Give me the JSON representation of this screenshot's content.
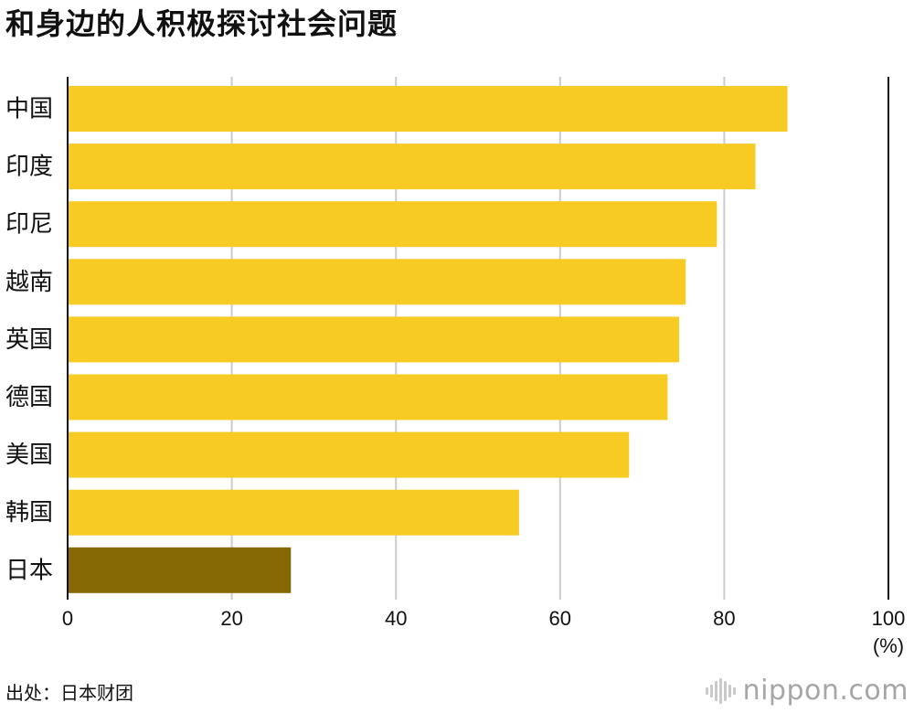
{
  "title": "和身边的人积极探讨社会问题",
  "source": "出处：日本财团",
  "logo": {
    "name": "nippon",
    "dot": ".",
    "suffix": "com"
  },
  "colors": {
    "bar": "#f7ca24",
    "highlight": "#866905",
    "grid": "#cccccc",
    "axis": "#111111",
    "text": "#111111"
  },
  "chart_data": {
    "type": "bar",
    "orientation": "horizontal",
    "title": "和身边的人积极探讨社会问题",
    "categories": [
      "中国",
      "印度",
      "印尼",
      "越南",
      "英国",
      "德国",
      "美国",
      "韩国",
      "日本"
    ],
    "values": [
      87.7,
      83.8,
      79.1,
      75.3,
      74.5,
      73.1,
      68.4,
      55.0,
      27.2
    ],
    "highlight": "日本",
    "xlim": [
      0,
      100
    ],
    "xticks": [
      0,
      20,
      40,
      60,
      80,
      100
    ],
    "unit": "(%)",
    "grid": true,
    "legend": false
  }
}
